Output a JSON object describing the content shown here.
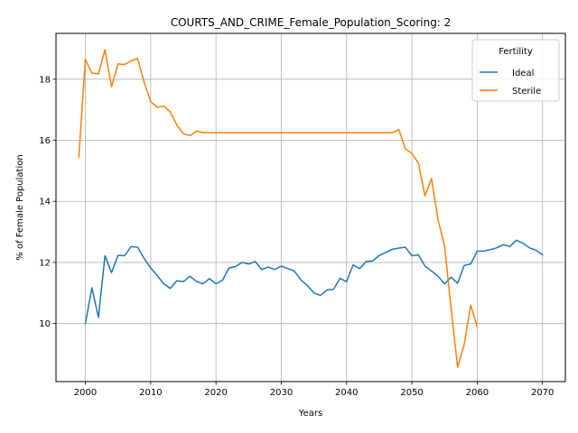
{
  "chart_data": {
    "type": "line",
    "title": "COURTS_AND_CRIME_Female_Population_Scoring: 2",
    "xlabel": "Years",
    "ylabel": "% of Female Population",
    "xlim": [
      1995.5,
      2073.5
    ],
    "ylim": [
      8.1,
      19.5
    ],
    "xticks": [
      2000,
      2010,
      2020,
      2030,
      2040,
      2050,
      2060,
      2070
    ],
    "yticks": [
      10,
      12,
      14,
      16,
      18
    ],
    "grid": true,
    "legend": {
      "title": "Fertility",
      "position": "top-right"
    },
    "series": [
      {
        "name": "Ideal",
        "color": "#1f77b4",
        "x": [
          2000,
          2001,
          2002,
          2003,
          2004,
          2005,
          2006,
          2007,
          2008,
          2009,
          2010,
          2011,
          2012,
          2013,
          2014,
          2015,
          2016,
          2017,
          2018,
          2019,
          2020,
          2021,
          2022,
          2023,
          2024,
          2025,
          2026,
          2027,
          2028,
          2029,
          2030,
          2031,
          2032,
          2033,
          2034,
          2035,
          2036,
          2037,
          2038,
          2039,
          2040,
          2041,
          2042,
          2043,
          2044,
          2045,
          2046,
          2047,
          2048,
          2049,
          2050,
          2051,
          2052,
          2053,
          2054,
          2055,
          2056,
          2057,
          2058,
          2059,
          2060,
          2061,
          2062,
          2063,
          2064,
          2065,
          2066,
          2067,
          2068,
          2069,
          2070
        ],
        "values": [
          10.0,
          11.17,
          10.2,
          12.22,
          11.67,
          12.23,
          12.22,
          12.52,
          12.5,
          12.13,
          11.82,
          11.57,
          11.3,
          11.15,
          11.4,
          11.37,
          11.55,
          11.38,
          11.3,
          11.47,
          11.3,
          11.42,
          11.82,
          11.87,
          12.0,
          11.95,
          12.03,
          11.77,
          11.85,
          11.77,
          11.88,
          11.8,
          11.72,
          11.43,
          11.24,
          11.0,
          10.92,
          11.1,
          11.12,
          11.48,
          11.37,
          11.92,
          11.8,
          12.03,
          12.05,
          12.23,
          12.33,
          12.43,
          12.47,
          12.5,
          12.22,
          12.25,
          11.88,
          11.72,
          11.55,
          11.3,
          11.52,
          11.32,
          11.9,
          11.95,
          12.37,
          12.37,
          12.42,
          12.48,
          12.58,
          12.52,
          12.73,
          12.63,
          12.48,
          12.4,
          12.25
        ]
      },
      {
        "name": "Sterile",
        "color": "#ff7f0e",
        "x": [
          1999,
          2000,
          2001,
          2002,
          2003,
          2004,
          2005,
          2006,
          2007,
          2008,
          2009,
          2010,
          2011,
          2012,
          2013,
          2014,
          2015,
          2016,
          2017,
          2018,
          2019,
          2020,
          2021,
          2022,
          2023,
          2024,
          2025,
          2026,
          2027,
          2028,
          2029,
          2030,
          2031,
          2032,
          2033,
          2034,
          2035,
          2036,
          2037,
          2038,
          2039,
          2040,
          2041,
          2042,
          2043,
          2044,
          2045,
          2046,
          2047,
          2048,
          2049,
          2050,
          2051,
          2052,
          2053,
          2054,
          2055,
          2056,
          2057,
          2058,
          2059,
          2060
        ],
        "values": [
          15.45,
          18.65,
          18.2,
          18.17,
          18.97,
          17.75,
          18.5,
          18.48,
          18.6,
          18.68,
          17.9,
          17.27,
          17.08,
          17.12,
          16.93,
          16.5,
          16.22,
          16.15,
          16.3,
          16.25,
          16.25,
          16.25,
          16.25,
          16.25,
          16.25,
          16.25,
          16.25,
          16.25,
          16.25,
          16.25,
          16.25,
          16.25,
          16.25,
          16.25,
          16.25,
          16.25,
          16.25,
          16.25,
          16.25,
          16.25,
          16.25,
          16.25,
          16.25,
          16.25,
          16.25,
          16.25,
          16.25,
          16.25,
          16.25,
          16.35,
          15.72,
          15.57,
          15.25,
          14.18,
          14.75,
          13.4,
          12.55,
          10.5,
          8.57,
          9.3,
          10.6,
          9.9
        ]
      }
    ]
  }
}
